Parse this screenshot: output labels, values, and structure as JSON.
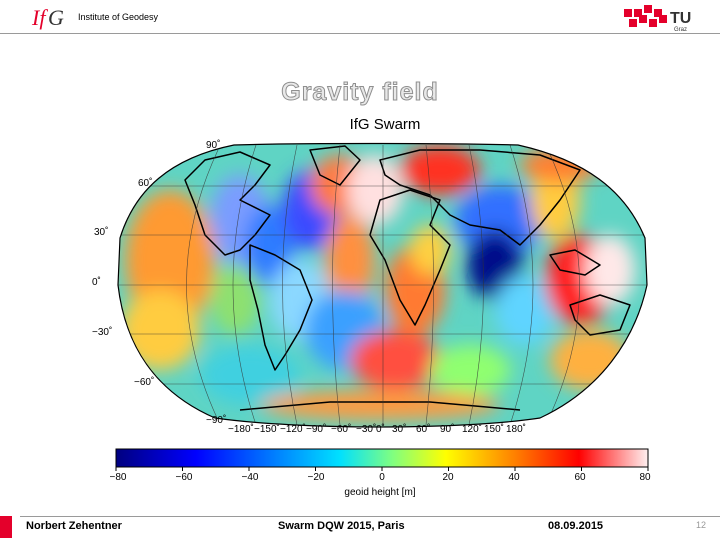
{
  "header": {
    "institute": "Institute of Geodesy",
    "logo_left": "IfG",
    "logo_right_main": "TU",
    "logo_right_sub": "Graz"
  },
  "slide": {
    "title": "Gravity field",
    "subtitle": "IfG Swarm"
  },
  "map": {
    "lat_labels": [
      "90˚",
      "60˚",
      "30˚",
      "0˚",
      "−30˚",
      "−60˚",
      "−90˚"
    ],
    "lon_labels": [
      "−180˚",
      "−150˚",
      "−120˚",
      "−90˚",
      "−60˚",
      "−30˚",
      "0˚",
      "30˚",
      "60˚",
      "90˚",
      "120˚",
      "150˚",
      "180˚"
    ]
  },
  "colorbar": {
    "ticks": [
      "−80",
      "−60",
      "−40",
      "−20",
      "0",
      "20",
      "40",
      "60",
      "80"
    ],
    "label": "geoid height [m]",
    "colors": [
      "#000080",
      "#0000ff",
      "#0080ff",
      "#00ffff",
      "#80ff80",
      "#ffff00",
      "#ff8000",
      "#ff0000",
      "#ffe8e8"
    ]
  },
  "footer": {
    "author": "Norbert Zehentner",
    "event": "Swarm DQW 2015, Paris",
    "date": "08.09.2015",
    "page": "12"
  }
}
